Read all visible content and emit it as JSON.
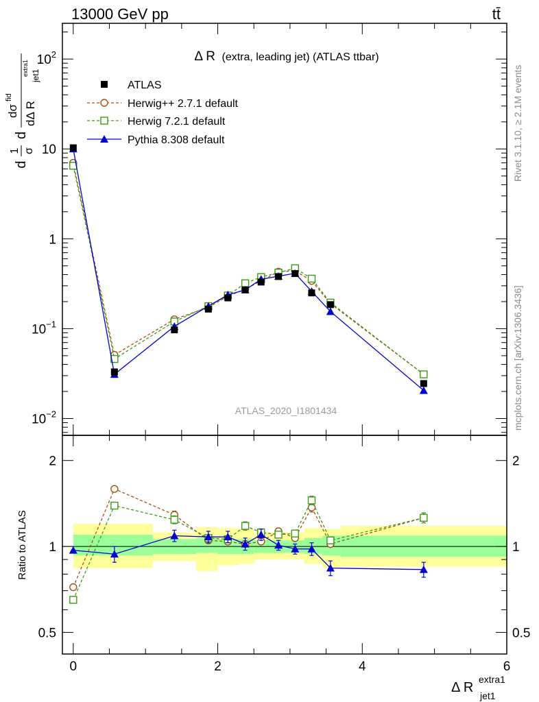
{
  "header": {
    "left": "13000 GeV pp",
    "right": "tt̄"
  },
  "plot_title": {
    "delta_r": "Δ R",
    "rest": "(extra, leading jet) (ATLAS ttbar)"
  },
  "ylabel_main": {
    "lead": "d",
    "frac_num": "1",
    "frac_den": "σ",
    "d2": "d",
    "sigma_num": "dσ",
    "sigma_sup": "fid",
    "den_main": "dΔ R",
    "den_sub": "jet1",
    "den_sup": "extra1"
  },
  "ylabel_ratio": "Ratio to ATLAS",
  "xlabel": {
    "main": "Δ R",
    "sub": "jet1",
    "sup": "extra1"
  },
  "watermark": "ATLAS_2020_I1801434",
  "side_text": {
    "rivet": "Rivet 3.1.10, ≥ 2.1M events",
    "mcplots": "mcplots.cern.ch [arXiv:1306.3436]"
  },
  "colors": {
    "atlas": "#000000",
    "herwigpp": "#a0520a",
    "herwig7": "#3a9a10",
    "pythia": "#0000dd",
    "band_inner": "#99ff99",
    "band_outer": "#ffff99"
  },
  "chart_data": [
    {
      "type": "line",
      "panel": "main",
      "yscale": "log",
      "ylim": [
        0.0065,
        250
      ],
      "xlim": [
        -0.15,
        6.0
      ],
      "yticks": [
        {
          "value": 0.01,
          "base": "10",
          "exp": "−2"
        },
        {
          "value": 0.1,
          "base": "10",
          "exp": "−1"
        },
        {
          "value": 1,
          "base": "1",
          "exp": ""
        },
        {
          "value": 10,
          "base": "10",
          "exp": ""
        },
        {
          "value": 100,
          "base": "10",
          "exp": "2"
        }
      ],
      "x": [
        0.0,
        0.57,
        1.4,
        1.87,
        2.14,
        2.38,
        2.6,
        2.84,
        3.07,
        3.3,
        3.56,
        4.85
      ],
      "series": [
        {
          "name": "ATLAS",
          "key": "atlas",
          "marker": "square",
          "values": [
            10.3,
            0.033,
            0.097,
            0.165,
            0.22,
            0.27,
            0.33,
            0.38,
            0.41,
            0.25,
            0.185,
            0.0245
          ]
        },
        {
          "name": "Herwig++ 2.7.1 default",
          "key": "herwigpp",
          "marker": "circle-open",
          "values": [
            7.0,
            0.051,
            0.127,
            0.173,
            0.23,
            0.275,
            0.34,
            0.43,
            0.44,
            0.34,
            0.19,
            0.031
          ]
        },
        {
          "name": "Herwig 7.2.1 default",
          "key": "herwig7",
          "marker": "square-open",
          "values": [
            6.5,
            0.046,
            0.12,
            0.178,
            0.234,
            0.32,
            0.375,
            0.42,
            0.47,
            0.36,
            0.195,
            0.031
          ]
        },
        {
          "name": "Pythia 8.308 default",
          "key": "pythia",
          "marker": "triangle",
          "values": [
            10.0,
            0.031,
            0.106,
            0.178,
            0.238,
            0.27,
            0.355,
            0.383,
            0.413,
            0.26,
            0.155,
            0.0205
          ]
        }
      ]
    },
    {
      "type": "line",
      "panel": "ratio",
      "yscale": "log",
      "ylim": [
        0.42,
        2.45
      ],
      "xlim": [
        -0.15,
        6.0
      ],
      "xticks": [
        0,
        2,
        4,
        6
      ],
      "yticks": [
        0.5,
        1,
        2
      ],
      "x": [
        0.0,
        0.57,
        1.4,
        1.87,
        2.14,
        2.38,
        2.6,
        2.84,
        3.07,
        3.3,
        3.56,
        4.85
      ],
      "bands": [
        {
          "x0": 0.0,
          "x1": 1.1,
          "inner": [
            0.93,
            1.1
          ],
          "outer": [
            0.84,
            1.2
          ]
        },
        {
          "x0": 1.1,
          "x1": 1.7,
          "inner": [
            0.94,
            1.06
          ],
          "outer": [
            0.89,
            1.12
          ]
        },
        {
          "x0": 1.7,
          "x1": 2.0,
          "inner": [
            0.95,
            1.07
          ],
          "outer": [
            0.82,
            1.17
          ]
        },
        {
          "x0": 2.0,
          "x1": 2.3,
          "inner": [
            0.94,
            1.06
          ],
          "outer": [
            0.86,
            1.16
          ]
        },
        {
          "x0": 2.3,
          "x1": 2.5,
          "inner": [
            0.94,
            1.06
          ],
          "outer": [
            0.87,
            1.15
          ]
        },
        {
          "x0": 2.5,
          "x1": 2.75,
          "inner": [
            0.95,
            1.05
          ],
          "outer": [
            0.9,
            1.12
          ]
        },
        {
          "x0": 2.75,
          "x1": 2.95,
          "inner": [
            0.95,
            1.05
          ],
          "outer": [
            0.9,
            1.12
          ]
        },
        {
          "x0": 2.95,
          "x1": 3.2,
          "inner": [
            0.95,
            1.05
          ],
          "outer": [
            0.9,
            1.12
          ]
        },
        {
          "x0": 3.2,
          "x1": 3.45,
          "inner": [
            0.94,
            1.07
          ],
          "outer": [
            0.87,
            1.16
          ]
        },
        {
          "x0": 3.45,
          "x1": 3.7,
          "inner": [
            0.93,
            1.09
          ],
          "outer": [
            0.84,
            1.15
          ]
        },
        {
          "x0": 3.7,
          "x1": 6.0,
          "inner": [
            0.92,
            1.09
          ],
          "outer": [
            0.85,
            1.18
          ]
        }
      ],
      "series": [
        {
          "name": "Herwig++ 2.7.1 default",
          "key": "herwigpp",
          "marker": "circle-open",
          "values": [
            0.72,
            1.59,
            1.29,
            1.05,
            1.04,
            1.02,
            1.04,
            1.13,
            1.07,
            1.37,
            1.02,
            1.26
          ],
          "err": [
            0,
            0,
            0.04,
            0,
            0,
            0,
            0,
            0.03,
            0,
            0.05,
            0,
            0.05
          ]
        },
        {
          "name": "Herwig 7.2.1 default",
          "key": "herwig7",
          "marker": "square-open",
          "values": [
            0.65,
            1.39,
            1.24,
            1.07,
            1.06,
            1.18,
            1.12,
            1.1,
            1.11,
            1.45,
            1.05,
            1.26
          ],
          "err": [
            0,
            0,
            0.04,
            0,
            0,
            0.04,
            0.03,
            0,
            0,
            0.05,
            0,
            0.05
          ]
        },
        {
          "name": "Pythia 8.308 default",
          "key": "pythia",
          "marker": "triangle",
          "values": [
            0.97,
            0.94,
            1.09,
            1.08,
            1.08,
            1.02,
            1.1,
            1.01,
            0.98,
            0.98,
            0.84,
            0.83
          ],
          "err": [
            0,
            0.06,
            0.05,
            0.05,
            0.05,
            0.05,
            0.05,
            0.04,
            0.04,
            0.05,
            0.05,
            0.05
          ]
        }
      ]
    }
  ]
}
